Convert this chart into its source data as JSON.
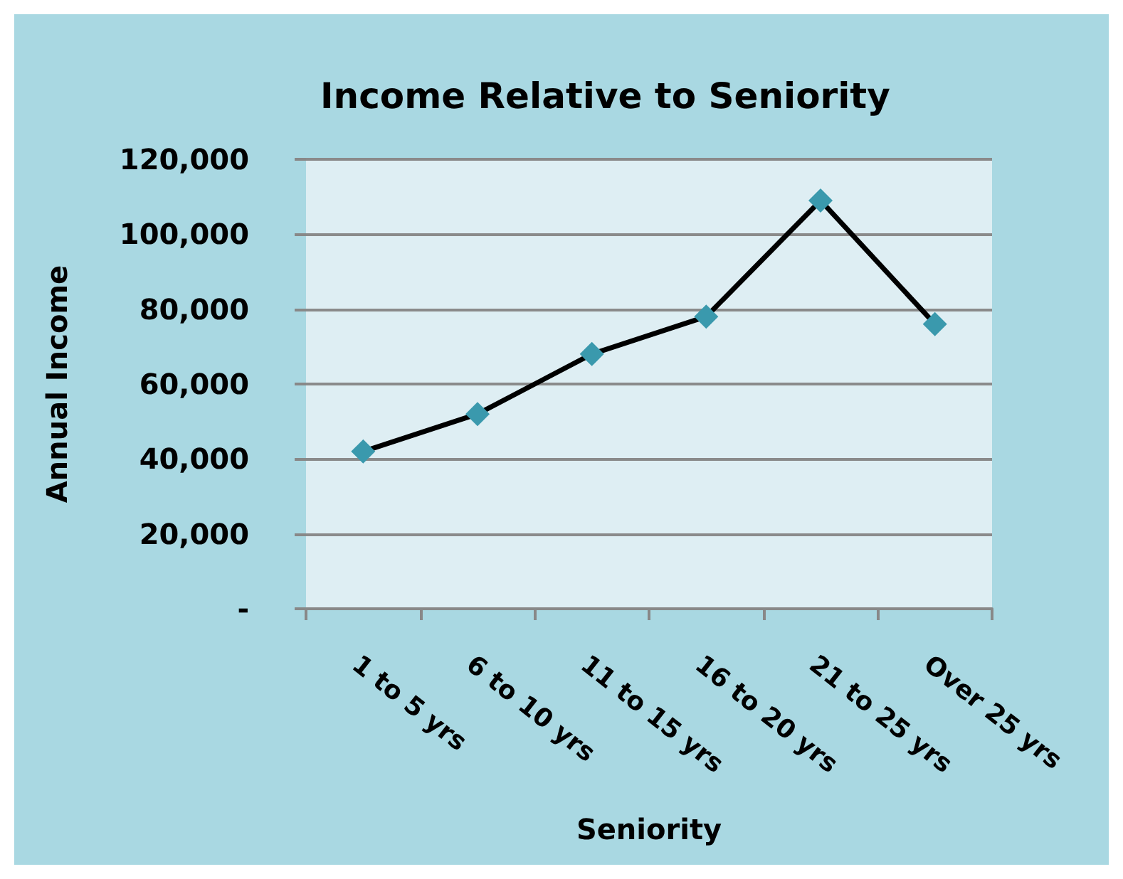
{
  "chart_data": {
    "type": "line",
    "title": "Income Relative to Seniority",
    "xlabel": "Seniority",
    "ylabel": "Annual Income",
    "categories": [
      "1 to 5 yrs",
      "6 to 10 yrs",
      "11 to 15 yrs",
      "16 to 20 yrs",
      "21 to 25 yrs",
      "Over 25 yrs"
    ],
    "series": [
      {
        "color": "#000000",
        "colors": [
          "#3a99ad",
          "#3a99ad",
          "#3a99ad",
          "#3a99ad",
          "#3a99ad",
          "#3a99ad"
        ],
        "values": [
          42000,
          52000,
          68000,
          78000,
          109000,
          76000
        ]
      }
    ],
    "marker": "diamond",
    "line_style": "solid",
    "ylim": [
      0,
      120000
    ],
    "yticks": [
      {
        "value": 0,
        "label": "-"
      },
      {
        "value": 20000,
        "label": "20,000"
      },
      {
        "value": 40000,
        "label": "40,000"
      },
      {
        "value": 60000,
        "label": "60,000"
      },
      {
        "value": 80000,
        "label": "80,000"
      },
      {
        "value": 100000,
        "label": "100,000"
      },
      {
        "value": 120000,
        "label": "120,000"
      }
    ],
    "grid": "y"
  }
}
